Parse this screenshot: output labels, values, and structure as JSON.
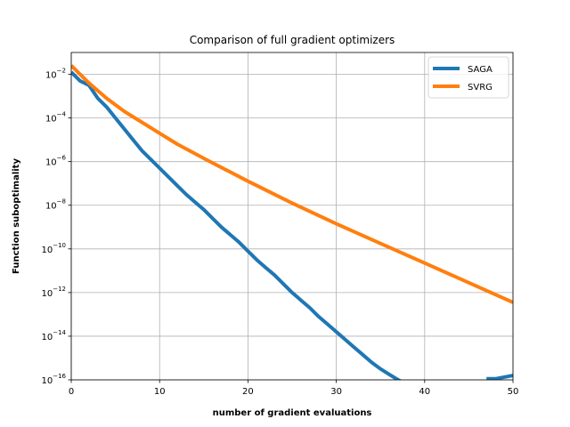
{
  "chart_data": {
    "type": "line",
    "title": "Comparison of full gradient optimizers",
    "xlabel": "number of gradient evaluations",
    "ylabel": "Function suboptimality",
    "xlim": [
      0,
      50
    ],
    "ylim_log10": [
      -16,
      -1
    ],
    "yscale": "log",
    "grid": true,
    "legend_position": "top-right",
    "x_ticks": [
      0,
      10,
      20,
      30,
      40,
      50
    ],
    "x_tick_labels": [
      "0",
      "10",
      "20",
      "30",
      "40",
      "50"
    ],
    "y_tick_exponents": [
      -2,
      -4,
      -6,
      -8,
      -10,
      -12,
      -14,
      -16
    ],
    "y_tick_base": "10",
    "y_tick_exponent_labels": [
      "−2",
      "−4",
      "−6",
      "−8",
      "−10",
      "−12",
      "−14",
      "−16"
    ],
    "series": [
      {
        "name": "SAGA",
        "color": "#1f77b4",
        "x": [
          0,
          1,
          2,
          3,
          4,
          5,
          6,
          7,
          8,
          9,
          10,
          11,
          12,
          13,
          14,
          15,
          16,
          17,
          18,
          19,
          20,
          21,
          22,
          23,
          24,
          25,
          26,
          27,
          28,
          29,
          30,
          31,
          32,
          33,
          34,
          35,
          36,
          37,
          38,
          39,
          40,
          41,
          42,
          43,
          44
        ],
        "log10_y": [
          -1.9,
          -2.3,
          -2.5,
          -3.1,
          -3.5,
          -4.0,
          -4.5,
          -5.0,
          -5.5,
          -5.9,
          -6.3,
          -6.7,
          -7.1,
          -7.5,
          -7.85,
          -8.2,
          -8.6,
          -9.0,
          -9.35,
          -9.7,
          -10.1,
          -10.5,
          -10.85,
          -11.2,
          -11.6,
          -12.0,
          -12.35,
          -12.7,
          -13.1,
          -13.45,
          -13.8,
          -14.15,
          -14.5,
          -14.85,
          -15.2,
          -15.5,
          -15.75,
          -16.0,
          -16.2,
          -16.4,
          -16.5,
          -16.6,
          -16.9,
          -16.8,
          -16.55
        ],
        "tail_x": [
          47,
          48,
          50
        ],
        "tail_log10_y": [
          -15.95,
          -15.95,
          -15.8
        ]
      },
      {
        "name": "SVRG",
        "color": "#ff7f0e",
        "x": [
          0,
          2,
          4,
          6,
          8,
          10,
          12,
          15,
          20,
          25,
          30,
          35,
          40,
          45,
          50
        ],
        "log10_y": [
          -1.6,
          -2.4,
          -3.1,
          -3.7,
          -4.2,
          -4.7,
          -5.2,
          -5.85,
          -6.9,
          -7.9,
          -8.85,
          -9.75,
          -10.65,
          -11.55,
          -12.45
        ]
      }
    ]
  }
}
